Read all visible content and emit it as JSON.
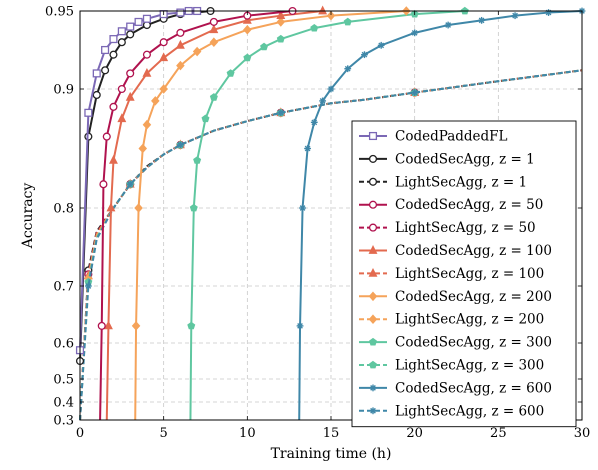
{
  "chart_data": {
    "type": "line",
    "xlabel": "Training time (h)",
    "ylabel": "Accuracy",
    "xlim": [
      0,
      30
    ],
    "ylim": [
      0.3,
      0.95
    ],
    "xticks": [
      0,
      5,
      10,
      15,
      20,
      25,
      30
    ],
    "yticks": [
      0.3,
      0.4,
      0.5,
      0.6,
      0.7,
      0.8,
      0.9,
      0.95
    ],
    "ytick_labels": [
      "0.3",
      "0.4",
      "0.5",
      "0.6",
      "0.7",
      "0.8",
      "0.9",
      "0.95"
    ],
    "grid": true,
    "legend_position": "bottom-right",
    "series": [
      {
        "name": "CodedPaddedFL",
        "color": "#7b68b5",
        "dash": "solid",
        "marker": "square",
        "x": [
          0,
          0.5,
          1.0,
          1.5,
          2.0,
          2.5,
          3.0,
          3.5,
          4.0,
          5.0,
          6.0,
          6.5,
          7.0
        ],
        "y": [
          0.58,
          0.88,
          0.91,
          0.925,
          0.932,
          0.937,
          0.94,
          0.943,
          0.945,
          0.948,
          0.949,
          0.95,
          0.95
        ]
      },
      {
        "name": "CodedSecAgg, z = 1",
        "color": "#222222",
        "dash": "solid",
        "marker": "circle",
        "x": [
          0,
          0.5,
          1.0,
          1.5,
          2.0,
          2.5,
          3.0,
          4.0,
          5.0,
          6.0,
          7.8
        ],
        "y": [
          0.55,
          0.86,
          0.895,
          0.912,
          0.922,
          0.93,
          0.935,
          0.941,
          0.945,
          0.948,
          0.95
        ]
      },
      {
        "name": "LightSecAgg, z = 1",
        "color": "#222222",
        "dash": "dashed",
        "marker": "circle",
        "x": [
          0,
          0.5,
          1.0,
          2.0,
          3.0,
          4.0,
          5.0,
          6.0,
          8.0,
          10.0,
          12.0,
          15.0,
          17.0,
          20.0,
          25.0,
          30.0
        ],
        "y": [
          0.3,
          0.72,
          0.77,
          0.8,
          0.82,
          0.835,
          0.845,
          0.853,
          0.865,
          0.873,
          0.88,
          0.888,
          0.891,
          0.897,
          0.905,
          0.912
        ]
      },
      {
        "name": "CodedSecAgg, z = 50",
        "color": "#b0124e",
        "dash": "solid",
        "marker": "circle",
        "x": [
          1.2,
          1.3,
          1.4,
          1.6,
          2.0,
          2.5,
          3.0,
          4.0,
          5.0,
          6.0,
          8.0,
          10.0,
          12.7
        ],
        "y": [
          0.3,
          0.63,
          0.82,
          0.86,
          0.885,
          0.9,
          0.91,
          0.922,
          0.93,
          0.936,
          0.943,
          0.947,
          0.95
        ]
      },
      {
        "name": "LightSecAgg, z = 50",
        "color": "#b0124e",
        "dash": "dashed",
        "marker": "circle",
        "x": [
          0,
          0.5,
          1.0,
          2.0,
          3.0,
          4.0,
          5.0,
          6.0,
          8.0,
          10.0,
          12.0,
          15.0,
          17.0,
          20.0,
          25.0,
          30.0
        ],
        "y": [
          0.3,
          0.715,
          0.768,
          0.8,
          0.82,
          0.834,
          0.845,
          0.853,
          0.865,
          0.873,
          0.88,
          0.888,
          0.891,
          0.897,
          0.905,
          0.912
        ]
      },
      {
        "name": "CodedSecAgg, z = 100",
        "color": "#e36a4f",
        "dash": "solid",
        "marker": "triangle",
        "x": [
          1.6,
          1.7,
          1.85,
          2.0,
          2.5,
          3.0,
          4.0,
          5.0,
          6.0,
          8.0,
          10.0,
          12.0,
          14.5
        ],
        "y": [
          0.3,
          0.63,
          0.8,
          0.84,
          0.875,
          0.893,
          0.91,
          0.92,
          0.928,
          0.938,
          0.944,
          0.947,
          0.95
        ]
      },
      {
        "name": "LightSecAgg, z = 100",
        "color": "#e36a4f",
        "dash": "dashed",
        "marker": "triangle",
        "x": [
          0,
          0.5,
          1.0,
          2.0,
          3.0,
          4.0,
          5.0,
          6.0,
          8.0,
          10.0,
          12.0,
          15.0,
          17.0,
          20.0,
          25.0,
          30.0
        ],
        "y": [
          0.3,
          0.713,
          0.767,
          0.8,
          0.82,
          0.834,
          0.845,
          0.853,
          0.865,
          0.873,
          0.88,
          0.888,
          0.891,
          0.897,
          0.905,
          0.912
        ]
      },
      {
        "name": "CodedSecAgg, z = 200",
        "color": "#f5a35a",
        "dash": "solid",
        "marker": "diamond",
        "x": [
          3.3,
          3.35,
          3.5,
          3.75,
          4.0,
          4.5,
          5.0,
          6.0,
          7.0,
          8.0,
          10.0,
          12.0,
          15.0,
          19.5
        ],
        "y": [
          0.3,
          0.63,
          0.8,
          0.85,
          0.87,
          0.89,
          0.9,
          0.915,
          0.924,
          0.93,
          0.938,
          0.943,
          0.947,
          0.95
        ]
      },
      {
        "name": "LightSecAgg, z = 200",
        "color": "#f5a35a",
        "dash": "dashed",
        "marker": "diamond",
        "x": [
          0,
          0.5,
          1.0,
          2.0,
          3.0,
          4.0,
          5.0,
          6.0,
          8.0,
          10.0,
          12.0,
          15.0,
          17.0,
          20.0,
          25.0,
          30.0
        ],
        "y": [
          0.3,
          0.71,
          0.765,
          0.8,
          0.82,
          0.834,
          0.845,
          0.853,
          0.865,
          0.873,
          0.88,
          0.888,
          0.891,
          0.897,
          0.905,
          0.912
        ]
      },
      {
        "name": "CodedSecAgg, z = 300",
        "color": "#5fc7a0",
        "dash": "solid",
        "marker": "pentagon",
        "x": [
          6.6,
          6.65,
          6.8,
          7.0,
          7.5,
          8.0,
          9.0,
          10.0,
          11.0,
          12.0,
          14.0,
          16.0,
          20.0,
          23.0
        ],
        "y": [
          0.3,
          0.63,
          0.8,
          0.84,
          0.875,
          0.893,
          0.91,
          0.92,
          0.927,
          0.932,
          0.939,
          0.943,
          0.948,
          0.95
        ]
      },
      {
        "name": "LightSecAgg, z = 300",
        "color": "#5fc7a0",
        "dash": "dashed",
        "marker": "pentagon",
        "x": [
          0,
          0.5,
          1.0,
          2.0,
          3.0,
          4.0,
          5.0,
          6.0,
          8.0,
          10.0,
          12.0,
          15.0,
          17.0,
          20.0,
          25.0,
          30.0
        ],
        "y": [
          0.3,
          0.705,
          0.762,
          0.8,
          0.82,
          0.834,
          0.845,
          0.853,
          0.865,
          0.873,
          0.88,
          0.888,
          0.891,
          0.897,
          0.905,
          0.912
        ]
      },
      {
        "name": "CodedSecAgg, z = 600",
        "color": "#3f87a8",
        "dash": "solid",
        "marker": "star",
        "x": [
          13.1,
          13.15,
          13.3,
          13.6,
          14.0,
          14.5,
          15.0,
          16.0,
          17.0,
          18.0,
          20.0,
          22.0,
          24.0,
          26.0,
          28.0,
          30.0
        ],
        "y": [
          0.3,
          0.63,
          0.8,
          0.85,
          0.872,
          0.89,
          0.9,
          0.913,
          0.922,
          0.928,
          0.936,
          0.941,
          0.944,
          0.947,
          0.949,
          0.95
        ]
      },
      {
        "name": "LightSecAgg, z = 600",
        "color": "#3f87a8",
        "dash": "dashed",
        "marker": "star",
        "x": [
          0,
          0.5,
          1.0,
          2.0,
          3.0,
          4.0,
          5.0,
          6.0,
          8.0,
          10.0,
          12.0,
          15.0,
          17.0,
          20.0,
          25.0,
          30.0
        ],
        "y": [
          0.3,
          0.7,
          0.76,
          0.8,
          0.82,
          0.834,
          0.845,
          0.853,
          0.865,
          0.873,
          0.88,
          0.888,
          0.891,
          0.897,
          0.905,
          0.912
        ]
      }
    ]
  }
}
